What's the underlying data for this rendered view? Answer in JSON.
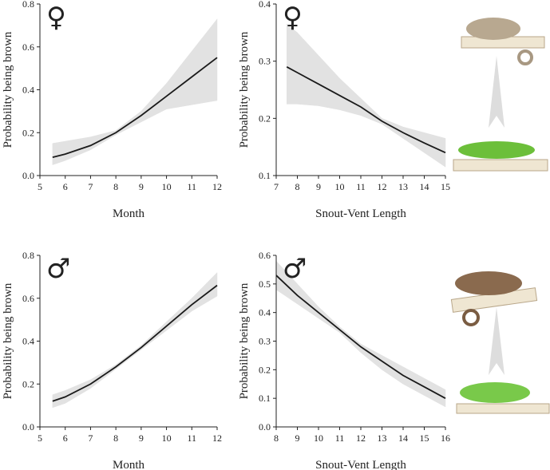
{
  "chart_data": [
    {
      "type": "line",
      "title": "♀",
      "xlabel": "Month",
      "ylabel": "Probability being brown",
      "xlim": [
        5,
        12
      ],
      "xticks": [
        5,
        6,
        7,
        8,
        9,
        10,
        11,
        12
      ],
      "ylim": [
        0,
        0.8
      ],
      "yticks": [
        {
          "value": 0,
          "label": "0.0"
        },
        0.2,
        0.4,
        0.6,
        0.8
      ],
      "x": [
        5.5,
        6,
        7,
        8,
        9,
        10,
        11,
        12
      ],
      "series": [
        {
          "color": "#1a1a1a",
          "band_color": "#e2e2e2",
          "values": [
            0.085,
            0.1,
            0.14,
            0.2,
            0.28,
            0.37,
            0.46,
            0.55
          ],
          "lower": [
            0.05,
            0.07,
            0.12,
            0.19,
            0.25,
            0.31,
            0.33,
            0.35
          ],
          "upper": [
            0.15,
            0.16,
            0.18,
            0.21,
            0.3,
            0.43,
            0.58,
            0.73
          ]
        }
      ]
    },
    {
      "type": "line",
      "title": "♀",
      "xlabel": "Snout-Vent Length",
      "ylabel": "Probability being brown",
      "xlim": [
        7,
        15
      ],
      "xticks": [
        7,
        8,
        9,
        10,
        11,
        12,
        13,
        14,
        15
      ],
      "ylim": [
        0.1,
        0.4
      ],
      "yticks": [
        0.1,
        0.2,
        0.3,
        0.4
      ],
      "x": [
        7.5,
        8,
        9,
        10,
        11,
        12,
        13,
        14,
        15
      ],
      "series": [
        {
          "color": "#1a1a1a",
          "band_color": "#e2e2e2",
          "values": [
            0.29,
            0.28,
            0.26,
            0.24,
            0.22,
            0.195,
            0.175,
            0.157,
            0.14
          ],
          "lower": [
            0.225,
            0.225,
            0.222,
            0.215,
            0.205,
            0.19,
            0.165,
            0.14,
            0.115
          ],
          "upper": [
            0.365,
            0.35,
            0.31,
            0.27,
            0.235,
            0.2,
            0.185,
            0.175,
            0.165
          ]
        }
      ]
    },
    {
      "type": "line",
      "title": "♂",
      "xlabel": "Month",
      "ylabel": "Probability being brown",
      "xlim": [
        5,
        12
      ],
      "xticks": [
        5,
        6,
        7,
        8,
        9,
        10,
        11,
        12
      ],
      "ylim": [
        0,
        0.8
      ],
      "yticks": [
        {
          "value": 0,
          "label": "0.0"
        },
        0.2,
        0.4,
        0.6,
        0.8
      ],
      "x": [
        5.5,
        6,
        7,
        8,
        9,
        10,
        11,
        12
      ],
      "series": [
        {
          "color": "#1a1a1a",
          "band_color": "#e2e2e2",
          "values": [
            0.12,
            0.14,
            0.2,
            0.28,
            0.37,
            0.47,
            0.57,
            0.66
          ],
          "lower": [
            0.09,
            0.11,
            0.18,
            0.27,
            0.36,
            0.45,
            0.54,
            0.61
          ],
          "upper": [
            0.15,
            0.17,
            0.22,
            0.29,
            0.38,
            0.49,
            0.6,
            0.72
          ]
        }
      ]
    },
    {
      "type": "line",
      "title": "♂",
      "xlabel": "Snout-Vent Length",
      "ylabel": "Probability being brown",
      "xlim": [
        8,
        16
      ],
      "xticks": [
        8,
        9,
        10,
        11,
        12,
        13,
        14,
        15,
        16
      ],
      "ylim": [
        0,
        0.6
      ],
      "yticks": [
        {
          "value": 0,
          "label": "0.0"
        },
        0.1,
        0.2,
        0.3,
        0.4,
        0.5,
        0.6
      ],
      "x": [
        8,
        9,
        10,
        11,
        12,
        13,
        14,
        15,
        16
      ],
      "series": [
        {
          "color": "#1a1a1a",
          "band_color": "#e2e2e2",
          "values": [
            0.53,
            0.46,
            0.4,
            0.34,
            0.28,
            0.23,
            0.18,
            0.14,
            0.1
          ],
          "lower": [
            0.48,
            0.43,
            0.38,
            0.33,
            0.26,
            0.2,
            0.15,
            0.11,
            0.07
          ],
          "upper": [
            0.58,
            0.5,
            0.42,
            0.35,
            0.29,
            0.25,
            0.21,
            0.17,
            0.13
          ]
        }
      ]
    }
  ]
}
